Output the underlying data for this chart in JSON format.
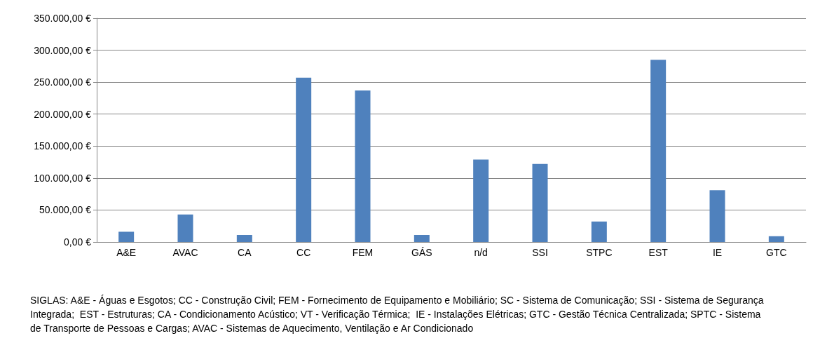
{
  "chart_data": {
    "type": "bar",
    "categories": [
      "A&E",
      "AVAC",
      "CA",
      "CC",
      "FEM",
      "GÁS",
      "n/d",
      "SSI",
      "STPC",
      "EST",
      "IE",
      "GTC"
    ],
    "values": [
      16000,
      43000,
      11000,
      257000,
      237000,
      11000,
      129000,
      122000,
      32000,
      285000,
      81000,
      9000
    ],
    "color": "#4f81bd",
    "ylim": [
      0,
      350000
    ],
    "yticks": [
      {
        "value": 0,
        "label": "0,00 €"
      },
      {
        "value": 50000,
        "label": "50.000,00 €"
      },
      {
        "value": 100000,
        "label": "100.000,00 €"
      },
      {
        "value": 150000,
        "label": "150.000,00 €"
      },
      {
        "value": 200000,
        "label": "200.000,00 €"
      },
      {
        "value": 250000,
        "label": "250.000,00 €"
      },
      {
        "value": 300000,
        "label": "300.000,00 €"
      },
      {
        "value": 350000,
        "label": "350.000,00 €"
      }
    ],
    "grid": "y",
    "annotations": [
      "SIGLAS: A&E - Águas e Esgotos; CC - Construção Civil; FEM - Fornecimento de Equipamento e Mobiliário; SC - Sistema de Comunicação; SSI - Sistema de Segurança Integrada;  EST - Estruturas; CA - Condicionamento Acústico; VT - Verificação Térmica;  IE - Instalações Elétricas; GTC - Gestão Técnica Centralizada; SPTC - Sistema de Transporte de Pessoas e Cargas; AVAC - Sistemas de Aquecimento, Ventilação e Ar Condicionado"
    ]
  }
}
